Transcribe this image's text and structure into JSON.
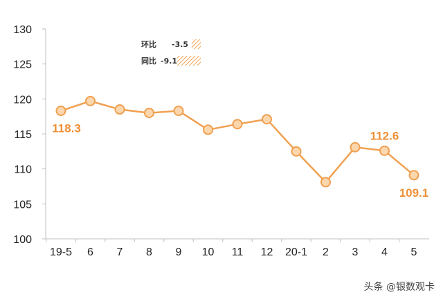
{
  "chart_data": {
    "type": "line",
    "categories": [
      "19-5",
      "6",
      "7",
      "8",
      "9",
      "10",
      "11",
      "12",
      "20-1",
      "2",
      "3",
      "4",
      "5"
    ],
    "series": [
      {
        "values": [
          118.3,
          119.7,
          118.5,
          118.0,
          118.3,
          115.6,
          116.4,
          117.1,
          112.5,
          108.1,
          113.1,
          112.6,
          109.1
        ]
      }
    ],
    "ylim": [
      100,
      130
    ],
    "yticks": [
      100,
      105,
      110,
      115,
      120,
      125,
      130
    ],
    "data_labels": [
      {
        "index": 0,
        "text": "118.3",
        "placement": "below"
      },
      {
        "index": 11,
        "text": "112.6",
        "placement": "above"
      },
      {
        "index": 12,
        "text": "109.1",
        "placement": "below"
      }
    ],
    "legend": [
      {
        "label": "环比",
        "value": "-3.5",
        "ratio": -3.5
      },
      {
        "label": "同比",
        "value": "-9.1",
        "ratio": -9.1
      }
    ],
    "legend_placement": "top-left",
    "grid": false,
    "colors": {
      "line": "#f0a050",
      "marker_fill": "#fcd7ae",
      "label": "#ef8f36",
      "hatch": "#f0a050"
    }
  },
  "watermark": "头条 @银数观卡"
}
